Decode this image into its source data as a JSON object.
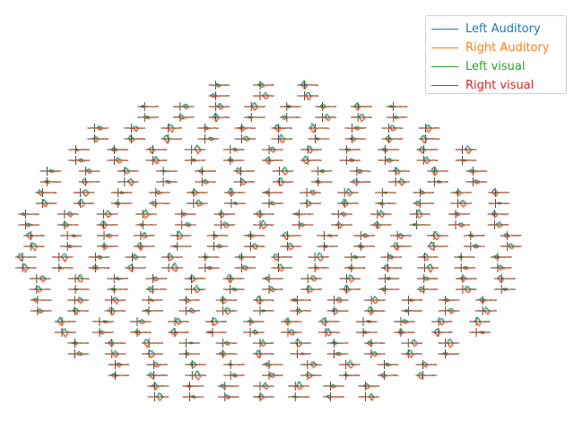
{
  "chart_data": {
    "type": "line",
    "kind": "evoked-topography",
    "series": [
      {
        "name": "Left Auditory",
        "color": "#1f77b4"
      },
      {
        "name": "Right Auditory",
        "color": "#ff7f0e"
      },
      {
        "name": "Left visual",
        "color": "#2ca02c"
      },
      {
        "name": "Right visual",
        "color": "#d62728"
      }
    ],
    "legend_position": "top-right",
    "axis_color": "#000000",
    "grid": false
  }
}
